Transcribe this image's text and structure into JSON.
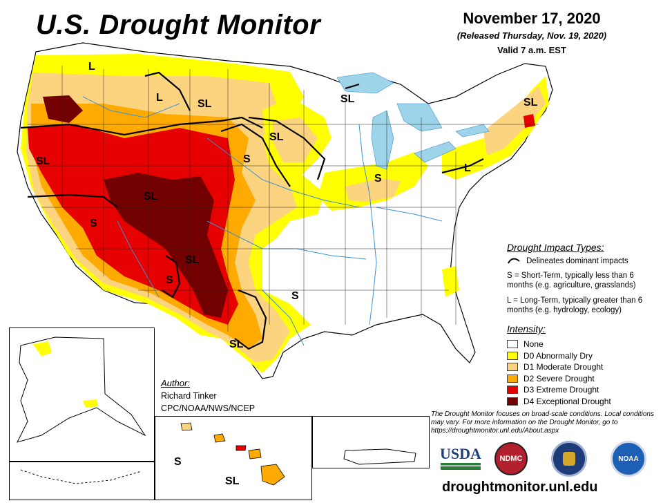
{
  "title": "U.S. Drought Monitor",
  "date": "November 17, 2020",
  "released": "(Released Thursday, Nov. 19, 2020)",
  "valid": "Valid 7 a.m. EST",
  "impact_legend": {
    "heading": "Drought Impact Types:",
    "delineates": "Delineates dominant impacts",
    "short_term": "S = Short-Term, typically less than 6 months (e.g. agriculture, grasslands)",
    "long_term": "L = Long-Term, typically greater than 6 months (e.g. hydrology, ecology)"
  },
  "intensity_legend": {
    "heading": "Intensity:",
    "levels": [
      {
        "label": "None",
        "color": "#ffffff"
      },
      {
        "label": "D0 Abnormally Dry",
        "color": "#ffff00"
      },
      {
        "label": "D1 Moderate Drought",
        "color": "#fcd37f"
      },
      {
        "label": "D2 Severe Drought",
        "color": "#ffaa00"
      },
      {
        "label": "D3 Extreme Drought",
        "color": "#e60000"
      },
      {
        "label": "D4 Exceptional Drought",
        "color": "#730000"
      }
    ]
  },
  "author": {
    "heading": "Author:",
    "name": "Richard Tinker",
    "org": "CPC/NOAA/NWS/NCEP"
  },
  "footnote": "The Drought Monitor focuses on broad-scale conditions. Local conditions may vary. For more information on the Drought Monitor, go to https://droughtmonitor.unl.edu/About.aspx",
  "website": "droughtmonitor.unl.edu",
  "logos": {
    "usda": "USDA",
    "ndmc": "NDMC",
    "noaa": "NOAA"
  },
  "map_labels": [
    "L",
    "L",
    "SL",
    "SL",
    "SL",
    "SL",
    "S",
    "SL",
    "S",
    "S",
    "SL",
    "L",
    "SL",
    "S",
    "S",
    "SL",
    "S",
    "SL"
  ],
  "colors": {
    "water": "#9dd4ea",
    "rivers": "#3a8fd6",
    "boundaries": "#000000"
  }
}
